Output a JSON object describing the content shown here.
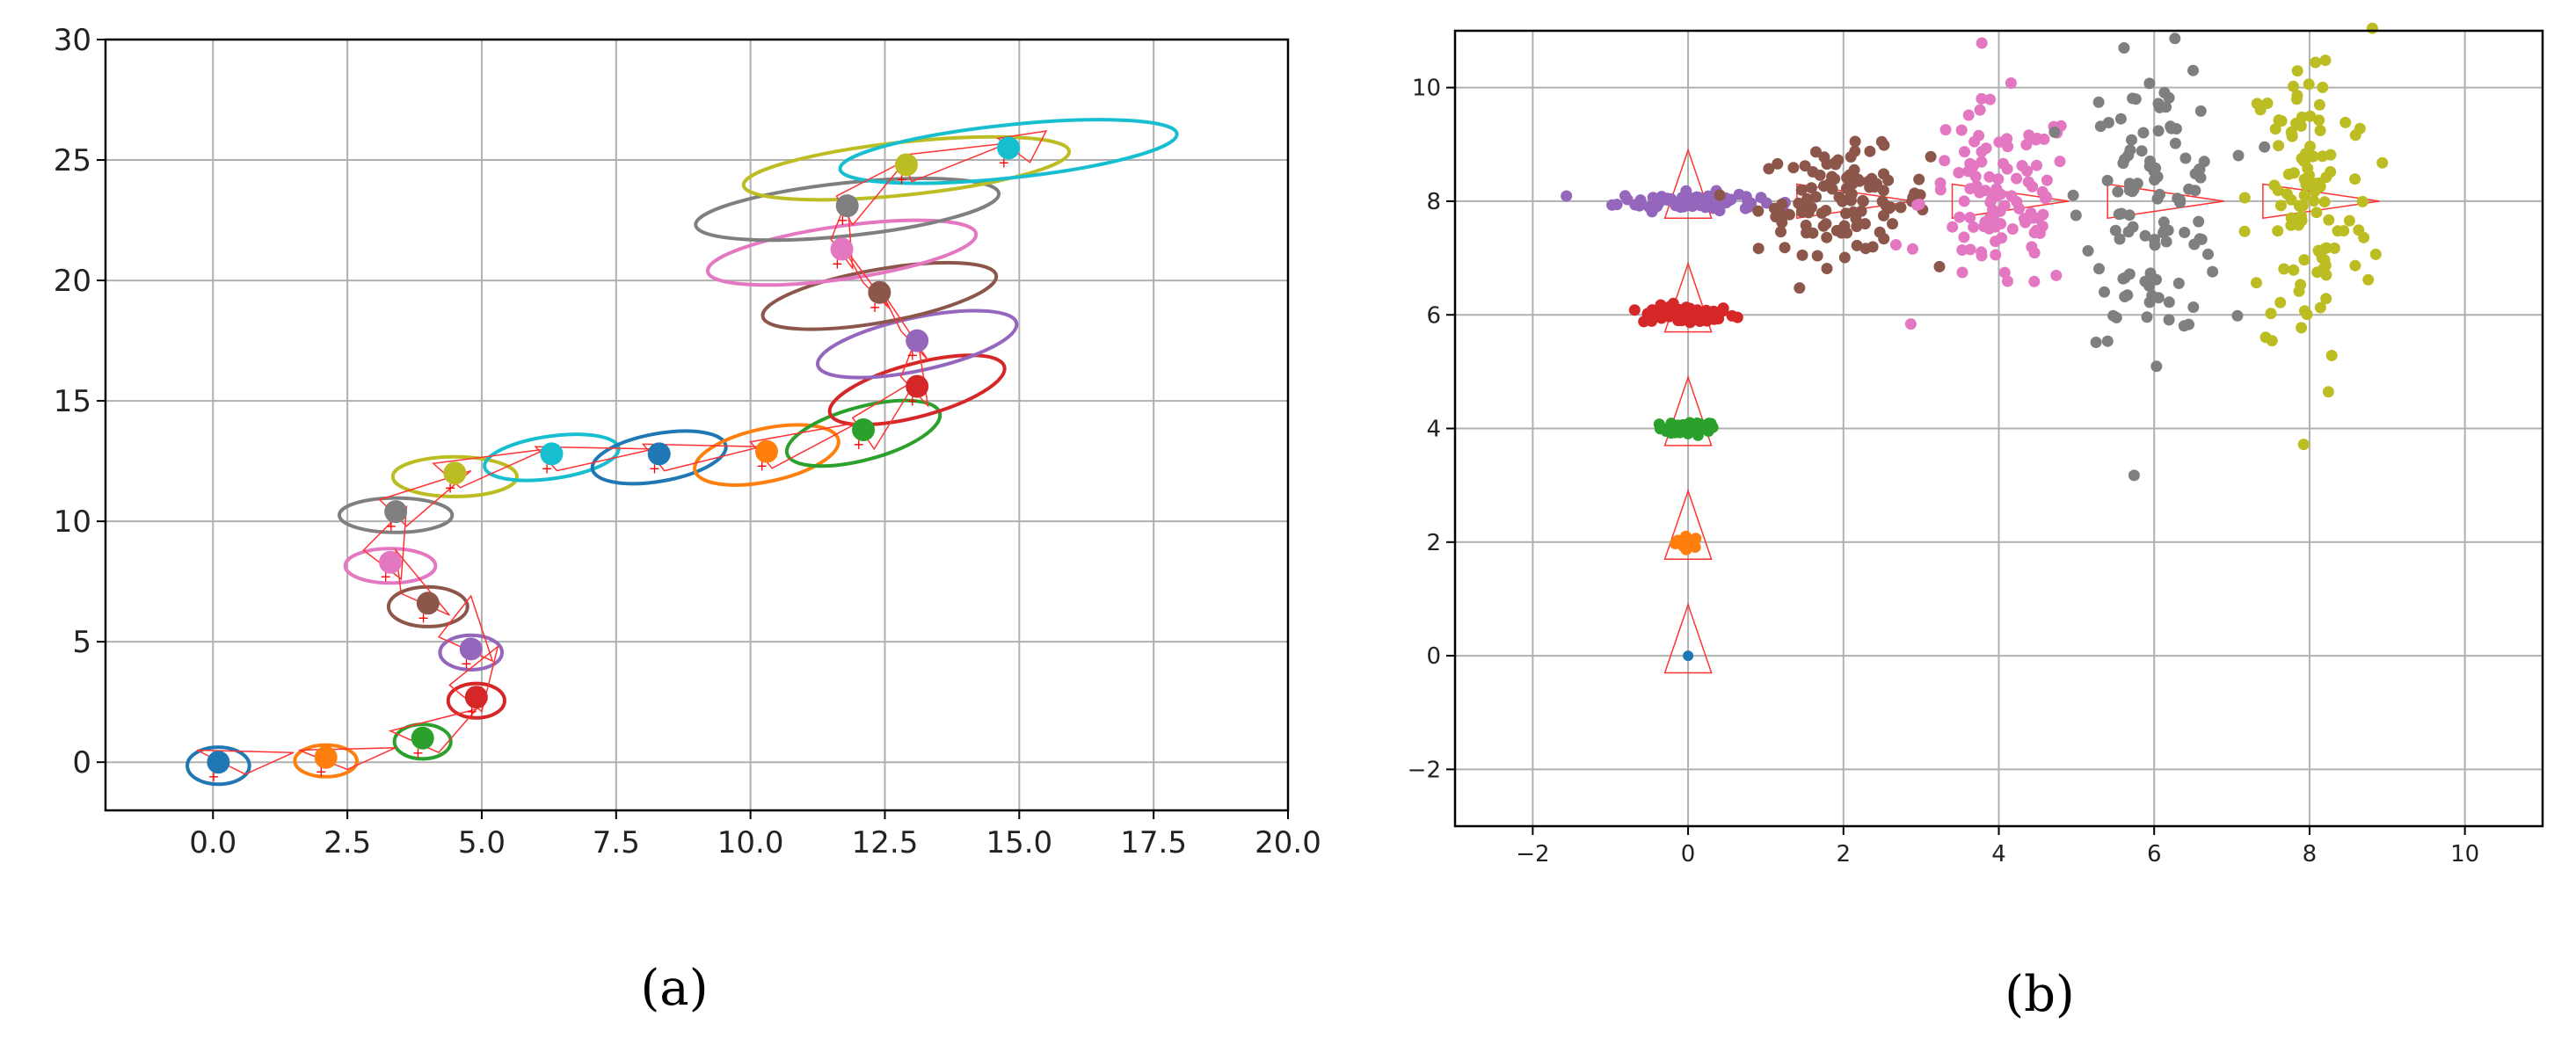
{
  "chart_data": [
    {
      "type": "scatter",
      "panel_label": "(a)",
      "title": "",
      "xlabel": "",
      "ylabel": "",
      "xlim": [
        -2,
        20
      ],
      "ylim": [
        -2,
        30
      ],
      "xticks": [
        0.0,
        2.5,
        5.0,
        7.5,
        10.0,
        12.5,
        15.0,
        17.5,
        20.0
      ],
      "xtick_labels": [
        "0.0",
        "2.5",
        "5.0",
        "7.5",
        "10.0",
        "12.5",
        "15.0",
        "17.5",
        "20.0"
      ],
      "yticks": [
        0,
        5,
        10,
        15,
        20,
        25,
        30
      ],
      "ytick_labels": [
        "0",
        "5",
        "10",
        "15",
        "20",
        "25",
        "30"
      ],
      "grid": true,
      "legend": "none",
      "series": [
        {
          "color": "#1f77b4",
          "point": [
            0.1,
            0.0
          ],
          "ellipse": {
            "rx": 0.55,
            "ry": 0.7,
            "angle": 0
          }
        },
        {
          "color": "#ff7f0e",
          "point": [
            2.1,
            0.2
          ],
          "ellipse": {
            "rx": 0.55,
            "ry": 0.6,
            "angle": 0
          }
        },
        {
          "color": "#2ca02c",
          "point": [
            3.9,
            1.0
          ],
          "ellipse": {
            "rx": 0.5,
            "ry": 0.65,
            "angle": 0
          }
        },
        {
          "color": "#d62728",
          "point": [
            4.9,
            2.7
          ],
          "ellipse": {
            "rx": 0.5,
            "ry": 0.65,
            "angle": 0
          }
        },
        {
          "color": "#9467bd",
          "point": [
            4.8,
            4.7
          ],
          "ellipse": {
            "rx": 0.55,
            "ry": 0.65,
            "angle": 0
          }
        },
        {
          "color": "#8c564b",
          "point": [
            4.0,
            6.6
          ],
          "ellipse": {
            "rx": 0.7,
            "ry": 0.75,
            "angle": 0
          }
        },
        {
          "color": "#e377c2",
          "point": [
            3.3,
            8.3
          ],
          "ellipse": {
            "rx": 0.8,
            "ry": 0.65,
            "angle": 0
          }
        },
        {
          "color": "#7f7f7f",
          "point": [
            3.4,
            10.4
          ],
          "ellipse": {
            "rx": 1.0,
            "ry": 0.65,
            "angle": 0
          }
        },
        {
          "color": "#bcbd22",
          "point": [
            4.5,
            12.0
          ],
          "ellipse": {
            "rx": 1.1,
            "ry": 0.75,
            "angle": 0
          }
        },
        {
          "color": "#17becf",
          "point": [
            6.3,
            12.8
          ],
          "ellipse": {
            "rx": 1.2,
            "ry": 0.8,
            "angle": -8
          }
        },
        {
          "color": "#1f77b4",
          "point": [
            8.3,
            12.8
          ],
          "ellipse": {
            "rx": 1.2,
            "ry": 0.9,
            "angle": -10
          }
        },
        {
          "color": "#ff7f0e",
          "point": [
            10.3,
            12.9
          ],
          "ellipse": {
            "rx": 1.3,
            "ry": 1.0,
            "angle": -12
          }
        },
        {
          "color": "#2ca02c",
          "point": [
            12.1,
            13.8
          ],
          "ellipse": {
            "rx": 1.4,
            "ry": 1.0,
            "angle": -15
          }
        },
        {
          "color": "#d62728",
          "point": [
            13.1,
            15.6
          ],
          "ellipse": {
            "rx": 1.6,
            "ry": 1.0,
            "angle": -15
          }
        },
        {
          "color": "#9467bd",
          "point": [
            13.1,
            17.5
          ],
          "ellipse": {
            "rx": 1.8,
            "ry": 1.0,
            "angle": -12
          }
        },
        {
          "color": "#8c564b",
          "point": [
            12.4,
            19.5
          ],
          "ellipse": {
            "rx": 2.1,
            "ry": 1.0,
            "angle": -10
          }
        },
        {
          "color": "#e377c2",
          "point": [
            11.7,
            21.3
          ],
          "ellipse": {
            "rx": 2.4,
            "ry": 1.0,
            "angle": -8
          }
        },
        {
          "color": "#7f7f7f",
          "point": [
            11.8,
            23.1
          ],
          "ellipse": {
            "rx": 2.7,
            "ry": 1.0,
            "angle": -6
          }
        },
        {
          "color": "#bcbd22",
          "point": [
            12.9,
            24.8
          ],
          "ellipse": {
            "rx": 2.9,
            "ry": 1.0,
            "angle": -6
          }
        },
        {
          "color": "#17becf",
          "point": [
            14.8,
            25.5
          ],
          "ellipse": {
            "rx": 3.0,
            "ry": 1.0,
            "angle": -6
          }
        }
      ],
      "triangles": [
        [
          [
            -0.3,
            0.5
          ],
          [
            1.5,
            0.4
          ],
          [
            0.6,
            -0.5
          ]
        ],
        [
          [
            1.6,
            0.5
          ],
          [
            3.4,
            0.6
          ],
          [
            2.5,
            -0.3
          ]
        ],
        [
          [
            3.3,
            1.3
          ],
          [
            4.9,
            2.2
          ],
          [
            4.2,
            0.4
          ]
        ],
        [
          [
            4.4,
            3.2
          ],
          [
            5.3,
            4.8
          ],
          [
            5.0,
            2.1
          ]
        ],
        [
          [
            4.2,
            5.2
          ],
          [
            4.8,
            6.9
          ],
          [
            5.2,
            4.2
          ]
        ],
        [
          [
            3.5,
            7.0
          ],
          [
            3.4,
            8.8
          ],
          [
            4.4,
            6.1
          ]
        ],
        [
          [
            2.8,
            8.8
          ],
          [
            3.6,
            10.6
          ],
          [
            3.5,
            7.6
          ]
        ],
        [
          [
            3.1,
            10.9
          ],
          [
            4.8,
            12.1
          ],
          [
            3.6,
            9.8
          ]
        ],
        [
          [
            4.1,
            12.4
          ],
          [
            6.2,
            13.0
          ],
          [
            4.6,
            11.4
          ]
        ],
        [
          [
            6.0,
            13.1
          ],
          [
            8.2,
            13.0
          ],
          [
            6.4,
            12.1
          ]
        ],
        [
          [
            8.0,
            13.2
          ],
          [
            10.2,
            13.1
          ],
          [
            8.4,
            12.1
          ]
        ],
        [
          [
            10.0,
            13.3
          ],
          [
            12.0,
            14.1
          ],
          [
            10.4,
            12.2
          ]
        ],
        [
          [
            11.9,
            14.3
          ],
          [
            13.1,
            15.9
          ],
          [
            12.3,
            13.0
          ]
        ],
        [
          [
            12.8,
            16.0
          ],
          [
            13.1,
            17.7
          ],
          [
            13.3,
            14.8
          ]
        ],
        [
          [
            12.8,
            17.9
          ],
          [
            12.4,
            19.7
          ],
          [
            13.3,
            16.7
          ]
        ],
        [
          [
            12.1,
            19.9
          ],
          [
            11.7,
            21.5
          ],
          [
            12.6,
            18.8
          ]
        ],
        [
          [
            11.5,
            21.7
          ],
          [
            11.8,
            23.4
          ],
          [
            11.9,
            20.5
          ]
        ],
        [
          [
            11.6,
            23.5
          ],
          [
            12.9,
            25.0
          ],
          [
            11.9,
            22.3
          ]
        ],
        [
          [
            12.8,
            25.2
          ],
          [
            14.8,
            25.7
          ],
          [
            13.0,
            24.1
          ]
        ],
        [
          [
            14.6,
            25.9
          ],
          [
            15.5,
            26.2
          ],
          [
            15.2,
            24.9
          ]
        ]
      ]
    },
    {
      "type": "scatter",
      "panel_label": "(b)",
      "title": "",
      "xlabel": "",
      "ylabel": "",
      "xlim": [
        -3,
        11
      ],
      "ylim": [
        -3,
        11
      ],
      "xticks": [
        -2,
        0,
        2,
        4,
        6,
        8,
        10
      ],
      "xtick_labels": [
        "−2",
        "0",
        "2",
        "4",
        "6",
        "8",
        "10"
      ],
      "yticks": [
        -2,
        0,
        2,
        4,
        6,
        8,
        10
      ],
      "ytick_labels": [
        "−2",
        "0",
        "2",
        "4",
        "6",
        "8",
        "10"
      ],
      "grid": true,
      "legend": "none",
      "series": [
        {
          "color": "#1f77b4",
          "center": [
            0,
            0
          ],
          "count": 1,
          "spread": [
            0.0,
            0.0
          ]
        },
        {
          "color": "#ff7f0e",
          "center": [
            0,
            2
          ],
          "count": 25,
          "spread": [
            0.08,
            0.05
          ]
        },
        {
          "color": "#2ca02c",
          "center": [
            0,
            4
          ],
          "count": 45,
          "spread": [
            0.18,
            0.06
          ]
        },
        {
          "color": "#d62728",
          "center": [
            0,
            6
          ],
          "count": 70,
          "spread": [
            0.3,
            0.08
          ]
        },
        {
          "color": "#9467bd",
          "center": [
            0,
            8
          ],
          "count": 90,
          "spread": [
            0.45,
            0.08
          ]
        },
        {
          "color": "#8c564b",
          "center": [
            2,
            8
          ],
          "count": 110,
          "spread": [
            0.55,
            0.45
          ]
        },
        {
          "color": "#e377c2",
          "center": [
            4,
            8
          ],
          "count": 110,
          "spread": [
            0.5,
            0.85
          ]
        },
        {
          "color": "#7f7f7f",
          "center": [
            6,
            8
          ],
          "count": 110,
          "spread": [
            0.45,
            1.2
          ]
        },
        {
          "color": "#bcbd22",
          "center": [
            8,
            8
          ],
          "count": 110,
          "spread": [
            0.4,
            1.5
          ]
        }
      ],
      "triangles": [
        [
          [
            0,
            0.9
          ],
          [
            -0.3,
            -0.3
          ],
          [
            0.3,
            -0.3
          ]
        ],
        [
          [
            0,
            2.9
          ],
          [
            -0.3,
            1.7
          ],
          [
            0.3,
            1.7
          ]
        ],
        [
          [
            0,
            4.9
          ],
          [
            -0.3,
            3.7
          ],
          [
            0.3,
            3.7
          ]
        ],
        [
          [
            0,
            6.9
          ],
          [
            -0.3,
            5.7
          ],
          [
            0.3,
            5.7
          ]
        ],
        [
          [
            0,
            8.9
          ],
          [
            -0.3,
            7.7
          ],
          [
            0.3,
            7.7
          ]
        ],
        [
          [
            1.4,
            8.3
          ],
          [
            1.4,
            7.7
          ],
          [
            2.9,
            8.0
          ]
        ],
        [
          [
            3.4,
            8.3
          ],
          [
            3.4,
            7.7
          ],
          [
            4.9,
            8.0
          ]
        ],
        [
          [
            5.4,
            8.3
          ],
          [
            5.4,
            7.7
          ],
          [
            6.9,
            8.0
          ]
        ],
        [
          [
            7.4,
            8.3
          ],
          [
            7.4,
            7.7
          ],
          [
            8.9,
            8.0
          ]
        ]
      ]
    }
  ]
}
